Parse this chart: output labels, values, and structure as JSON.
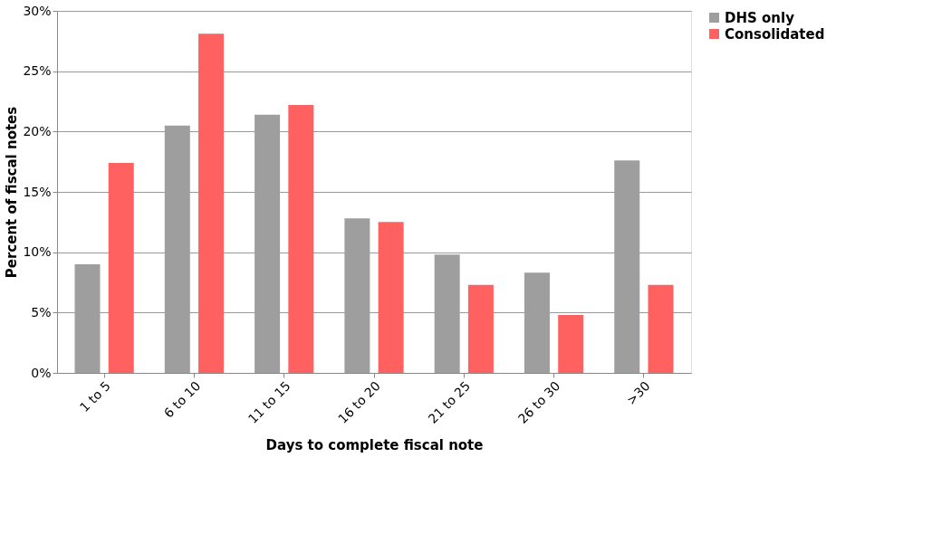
{
  "chart_data": {
    "type": "bar",
    "xlabel": "Days to complete fiscal note",
    "ylabel": "Percent of fiscal notes",
    "categories": [
      "1 to 5",
      "6 to 10",
      "11 to 15",
      "16 to 20",
      "21 to 25",
      "26 to 30",
      ">30"
    ],
    "series": [
      {
        "name": "DHS only",
        "color": "#9e9e9e",
        "values": [
          9.0,
          20.5,
          21.4,
          12.8,
          9.8,
          8.3,
          17.6
        ]
      },
      {
        "name": "Consolidated",
        "color": "#ff6161",
        "values": [
          17.4,
          28.1,
          22.2,
          12.5,
          7.3,
          4.8,
          7.3
        ]
      }
    ],
    "ylim": [
      0,
      30
    ],
    "yticks": [
      {
        "value": 0,
        "label": "0%"
      },
      {
        "value": 5,
        "label": "5%"
      },
      {
        "value": 10,
        "label": "10%"
      },
      {
        "value": 15,
        "label": "15%"
      },
      {
        "value": 20,
        "label": "20%"
      },
      {
        "value": 25,
        "label": "25%"
      },
      {
        "value": 30,
        "label": "30%"
      }
    ],
    "grid": "y",
    "legend": "right"
  }
}
